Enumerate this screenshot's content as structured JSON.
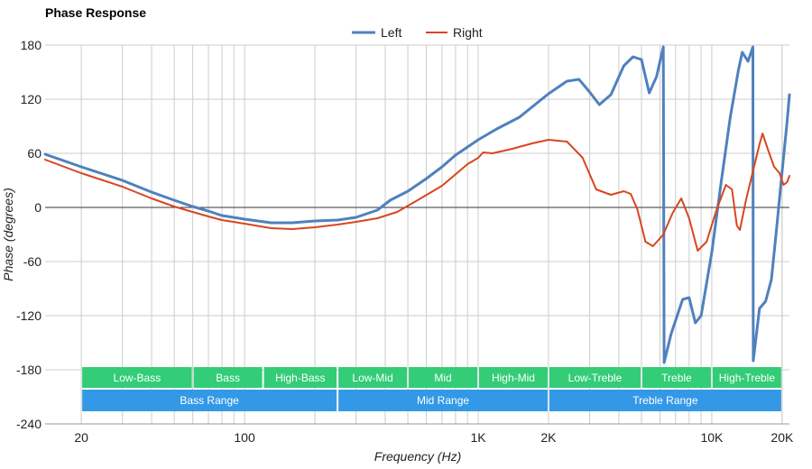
{
  "chart_data": {
    "type": "line",
    "title": "Phase Response",
    "xlabel": "Frequency (Hz)",
    "ylabel": "Phase (degrees)",
    "xscale": "log",
    "xlim": [
      14,
      21500
    ],
    "ylim": [
      -240,
      180
    ],
    "yticks": [
      180,
      120,
      60,
      0,
      -60,
      -120,
      -180,
      -240
    ],
    "xticks": [
      {
        "value": 20,
        "label": "20"
      },
      {
        "value": 100,
        "label": "100"
      },
      {
        "value": 1000,
        "label": "1K"
      },
      {
        "value": 2000,
        "label": "2K"
      },
      {
        "value": 10000,
        "label": "10K"
      },
      {
        "value": 20000,
        "label": "20K"
      }
    ],
    "grid": true,
    "legend": "top-center",
    "series": [
      {
        "name": "Left",
        "color": "#4f81bd",
        "points": [
          [
            14,
            59
          ],
          [
            20,
            45
          ],
          [
            30,
            30
          ],
          [
            40,
            17
          ],
          [
            50,
            8
          ],
          [
            60,
            1
          ],
          [
            70,
            -4
          ],
          [
            80,
            -9
          ],
          [
            100,
            -13
          ],
          [
            130,
            -17
          ],
          [
            160,
            -17
          ],
          [
            200,
            -15
          ],
          [
            250,
            -14
          ],
          [
            300,
            -11
          ],
          [
            370,
            -3
          ],
          [
            420,
            8
          ],
          [
            500,
            18
          ],
          [
            600,
            32
          ],
          [
            700,
            45
          ],
          [
            800,
            58
          ],
          [
            900,
            67
          ],
          [
            1000,
            75
          ],
          [
            1200,
            87
          ],
          [
            1500,
            100
          ],
          [
            2000,
            126
          ],
          [
            2400,
            140
          ],
          [
            2700,
            142
          ],
          [
            3000,
            128
          ],
          [
            3300,
            114
          ],
          [
            3700,
            125
          ],
          [
            4200,
            157
          ],
          [
            4600,
            167
          ],
          [
            5000,
            164
          ],
          [
            5400,
            127
          ],
          [
            5800,
            145
          ],
          [
            6200,
            178
          ],
          [
            6250,
            -172
          ],
          [
            6700,
            -140
          ],
          [
            7500,
            -102
          ],
          [
            8000,
            -100
          ],
          [
            8500,
            -128
          ],
          [
            9000,
            -120
          ],
          [
            10000,
            -50
          ],
          [
            11000,
            30
          ],
          [
            12000,
            100
          ],
          [
            13000,
            152
          ],
          [
            13500,
            172
          ],
          [
            14300,
            162
          ],
          [
            15000,
            178
          ],
          [
            15050,
            -170
          ],
          [
            16000,
            -112
          ],
          [
            17000,
            -104
          ],
          [
            18000,
            -80
          ],
          [
            19000,
            -20
          ],
          [
            20000,
            40
          ],
          [
            21000,
            95
          ],
          [
            21500,
            125
          ]
        ]
      },
      {
        "name": "Right",
        "color": "#d9451f",
        "points": [
          [
            14,
            53
          ],
          [
            20,
            38
          ],
          [
            30,
            23
          ],
          [
            40,
            10
          ],
          [
            50,
            1
          ],
          [
            60,
            -5
          ],
          [
            70,
            -10
          ],
          [
            80,
            -14
          ],
          [
            100,
            -18
          ],
          [
            130,
            -23
          ],
          [
            160,
            -24
          ],
          [
            200,
            -22
          ],
          [
            250,
            -19
          ],
          [
            300,
            -16
          ],
          [
            370,
            -12
          ],
          [
            450,
            -5
          ],
          [
            550,
            8
          ],
          [
            700,
            24
          ],
          [
            900,
            48
          ],
          [
            1000,
            55
          ],
          [
            1050,
            61
          ],
          [
            1150,
            60
          ],
          [
            1400,
            65
          ],
          [
            1700,
            71
          ],
          [
            2000,
            75
          ],
          [
            2400,
            73
          ],
          [
            2800,
            55
          ],
          [
            3200,
            20
          ],
          [
            3700,
            14
          ],
          [
            4200,
            18
          ],
          [
            4500,
            15
          ],
          [
            4800,
            -2
          ],
          [
            5200,
            -38
          ],
          [
            5600,
            -43
          ],
          [
            6200,
            -30
          ],
          [
            6800,
            -6
          ],
          [
            7400,
            10
          ],
          [
            8000,
            -12
          ],
          [
            8700,
            -48
          ],
          [
            9500,
            -38
          ],
          [
            10500,
            -2
          ],
          [
            11500,
            25
          ],
          [
            12200,
            20
          ],
          [
            12800,
            -20
          ],
          [
            13200,
            -25
          ],
          [
            14000,
            8
          ],
          [
            15000,
            40
          ],
          [
            16000,
            70
          ],
          [
            16500,
            82
          ],
          [
            17500,
            62
          ],
          [
            18500,
            45
          ],
          [
            19500,
            38
          ],
          [
            20300,
            25
          ],
          [
            21000,
            28
          ],
          [
            21500,
            35
          ]
        ]
      }
    ],
    "range_bands": [
      {
        "label": "Low-Bass",
        "from": 20,
        "to": 60
      },
      {
        "label": "Bass",
        "from": 60,
        "to": 120
      },
      {
        "label": "High-Bass",
        "from": 120,
        "to": 250
      },
      {
        "label": "Low-Mid",
        "from": 250,
        "to": 500
      },
      {
        "label": "Mid",
        "from": 500,
        "to": 1000
      },
      {
        "label": "High-Mid",
        "from": 1000,
        "to": 2000
      },
      {
        "label": "Low-Treble",
        "from": 2000,
        "to": 5000
      },
      {
        "label": "Treble",
        "from": 5000,
        "to": 10000
      },
      {
        "label": "High-Treble",
        "from": 10000,
        "to": 20000
      }
    ],
    "range_groups": [
      {
        "label": "Bass Range",
        "from": 20,
        "to": 250
      },
      {
        "label": "Mid Range",
        "from": 250,
        "to": 2000
      },
      {
        "label": "Treble Range",
        "from": 2000,
        "to": 20000
      }
    ],
    "colors": {
      "band": "#33cc77",
      "group": "#3399e6",
      "grid": "#cccccc",
      "zero_line": "#333333"
    }
  }
}
